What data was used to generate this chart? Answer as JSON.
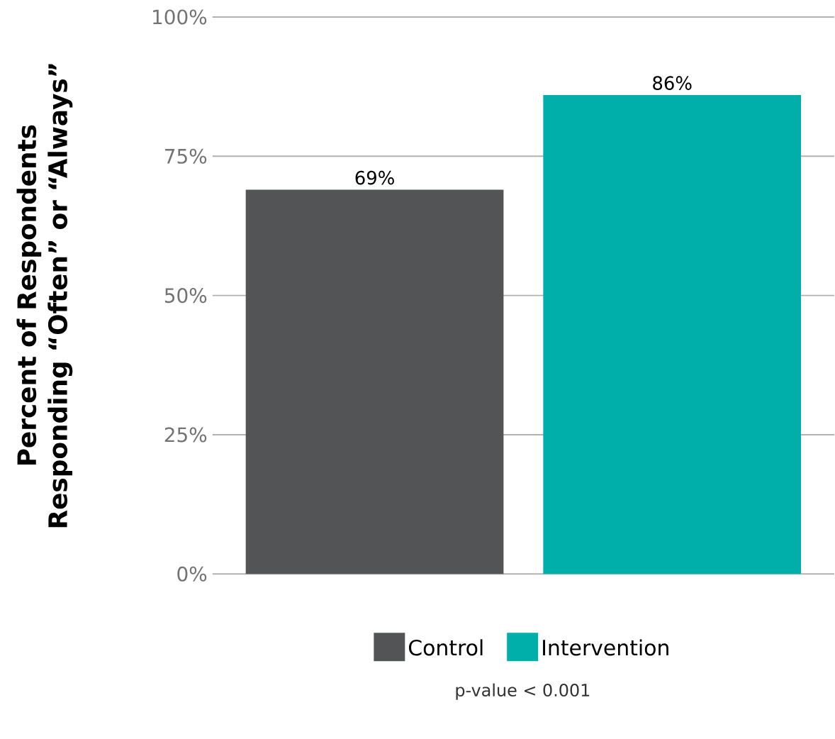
{
  "chart_data": {
    "type": "bar",
    "ylabel": "Percent of Respondents Responding “Often” or “Always”",
    "categories": [
      null
    ],
    "series": [
      {
        "name": "Control",
        "color": "#525456",
        "values": [
          69
        ],
        "value_labels": [
          "69%"
        ]
      },
      {
        "name": "Intervention",
        "color": "#00aeaa",
        "values": [
          86
        ],
        "value_labels": [
          "86%"
        ]
      }
    ],
    "ylim": [
      0,
      100
    ],
    "yticks": [
      {
        "value": 0,
        "label": "0%"
      },
      {
        "value": 25,
        "label": "25%"
      },
      {
        "value": 50,
        "label": "50%"
      },
      {
        "value": 75,
        "label": "75%"
      },
      {
        "value": 100,
        "label": "100%"
      }
    ],
    "grid": "y",
    "legend": "bottom",
    "annotations": [
      "p-value < 0.001"
    ]
  }
}
